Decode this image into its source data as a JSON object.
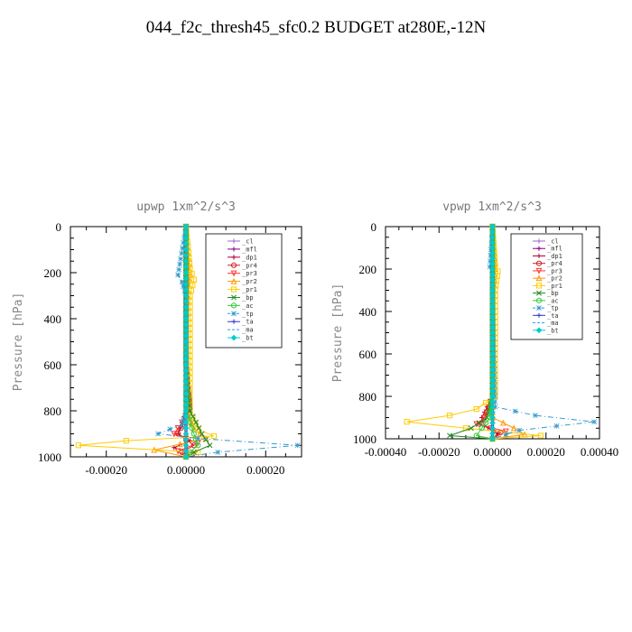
{
  "title": "044_f2c_thresh45_sfc0.2  BUDGET at280E,-12N",
  "chart_data": [
    {
      "type": "line",
      "title": "upwp   1xm^2/s^3",
      "ylabel": "Pressure [hPa]",
      "xlabel": "",
      "xlim": [
        -0.00029,
        0.00029
      ],
      "ylim": [
        1000,
        0
      ],
      "xticks": [
        -0.0002,
        0,
        0.0002
      ],
      "xtick_labels": [
        "-0.00020",
        "0.00000",
        "0.00020"
      ],
      "yticks": [
        0,
        200,
        400,
        600,
        800,
        1000
      ],
      "ytick_labels": [
        "0",
        "200",
        "400",
        "600",
        "800",
        "1000"
      ],
      "legend": "top-right",
      "series": [
        {
          "name": "_cl",
          "color": "#9966cc",
          "marker": "+",
          "x": [
            0,
            0,
            0,
            0,
            0,
            0,
            0
          ],
          "y": [
            0,
            200,
            400,
            600,
            800,
            900,
            1000
          ]
        },
        {
          "name": "_mfl",
          "color": "#880088",
          "marker": "+",
          "x": [
            0,
            0,
            0,
            0,
            0,
            0,
            0
          ],
          "y": [
            0,
            200,
            400,
            600,
            800,
            900,
            1000
          ]
        },
        {
          "name": "_dp1",
          "color": "#aa0033",
          "marker": "+",
          "x": [
            0,
            0,
            0,
            0,
            0,
            -2e-05,
            1e-05,
            -3e-05,
            2e-05,
            0
          ],
          "y": [
            0,
            200,
            400,
            600,
            800,
            900,
            930,
            960,
            985,
            1000
          ]
        },
        {
          "name": "_pr4",
          "color": "#cc2222",
          "marker": "o",
          "x": [
            0,
            0,
            0,
            0,
            1e-05,
            -2e-05,
            2e-05,
            -1e-05,
            0
          ],
          "y": [
            0,
            200,
            400,
            600,
            800,
            900,
            950,
            980,
            1000
          ]
        },
        {
          "name": "_pr3",
          "color": "#ff3333",
          "marker": "v",
          "x": [
            0,
            0,
            0,
            0,
            1e-05,
            -3e-05,
            3e-05,
            -2e-05,
            0
          ],
          "y": [
            0,
            200,
            400,
            600,
            800,
            900,
            940,
            975,
            1000
          ]
        },
        {
          "name": "_pr2",
          "color": "#ff9900",
          "marker": "^",
          "x": [
            0,
            1e-05,
            0,
            0,
            0,
            2e-05,
            5e-05,
            -8e-05,
            0
          ],
          "y": [
            0,
            210,
            400,
            600,
            800,
            880,
            920,
            970,
            1000
          ]
        },
        {
          "name": "_pr1",
          "color": "#ffcc00",
          "marker": "s",
          "x": [
            0,
            1e-05,
            2e-05,
            1e-05,
            1e-05,
            3e-05,
            7e-05,
            -0.00015,
            -0.00027,
            3e-05,
            0
          ],
          "y": [
            0,
            180,
            230,
            300,
            800,
            880,
            910,
            930,
            950,
            980,
            1000
          ]
        },
        {
          "name": "_bp",
          "color": "#228822",
          "marker": "x",
          "x": [
            0,
            0,
            0,
            0,
            1e-05,
            4e-05,
            6e-05,
            2e-05,
            0
          ],
          "y": [
            0,
            200,
            400,
            600,
            800,
            900,
            950,
            980,
            1000
          ]
        },
        {
          "name": "_ac",
          "color": "#33cc33",
          "marker": "o",
          "x": [
            0,
            0,
            0,
            0,
            0,
            2e-05,
            3e-05,
            1e-05,
            0
          ],
          "y": [
            0,
            200,
            400,
            600,
            800,
            900,
            950,
            980,
            1000
          ]
        },
        {
          "name": "_tp",
          "color": "#3399cc",
          "marker": "*",
          "x": [
            0,
            -2e-05,
            -1e-05,
            0,
            0,
            -1e-05,
            -7e-05,
            3e-05,
            0.00028,
            8e-05,
            0
          ],
          "y": [
            0,
            210,
            240,
            300,
            800,
            860,
            900,
            920,
            950,
            980,
            1000
          ]
        },
        {
          "name": "_ta",
          "color": "#3333cc",
          "marker": "+",
          "x": [
            0,
            0,
            0,
            0,
            0,
            0,
            0
          ],
          "y": [
            0,
            200,
            400,
            600,
            800,
            900,
            1000
          ]
        },
        {
          "name": "_ma",
          "color": "#3399ff",
          "marker": "",
          "x": [
            0,
            0,
            0,
            0,
            0,
            0,
            0
          ],
          "y": [
            0,
            200,
            400,
            600,
            800,
            900,
            1000
          ]
        },
        {
          "name": "_bt",
          "color": "#00cccc",
          "marker": "D",
          "x": [
            0,
            0,
            0,
            0,
            0,
            0,
            0
          ],
          "y": [
            0,
            200,
            400,
            600,
            800,
            900,
            1000
          ]
        }
      ]
    },
    {
      "type": "line",
      "title": "vpwp   1xm^2/s^3",
      "ylabel": "Pressure [hPa]",
      "xlabel": "",
      "xlim": [
        -0.0004,
        0.0004
      ],
      "ylim": [
        1000,
        0
      ],
      "xticks": [
        -0.0004,
        -0.0002,
        0,
        0.0002,
        0.0004
      ],
      "xtick_labels": [
        "-0.00040",
        "-0.00020",
        "0.00000",
        "0.00020",
        "0.00040"
      ],
      "yticks": [
        0,
        200,
        400,
        600,
        800,
        1000
      ],
      "ytick_labels": [
        "0",
        "200",
        "400",
        "600",
        "800",
        "1000"
      ],
      "legend": "top-right",
      "series": [
        {
          "name": "_cl",
          "color": "#9966cc",
          "marker": "+",
          "x": [
            0,
            0,
            0,
            0,
            0,
            0,
            0
          ],
          "y": [
            0,
            200,
            400,
            600,
            800,
            900,
            1000
          ]
        },
        {
          "name": "_mfl",
          "color": "#880088",
          "marker": "+",
          "x": [
            0,
            0,
            0,
            0,
            0,
            0,
            0
          ],
          "y": [
            0,
            200,
            400,
            600,
            800,
            900,
            1000
          ]
        },
        {
          "name": "_dp1",
          "color": "#aa0033",
          "marker": "+",
          "x": [
            0,
            0,
            0,
            0,
            0,
            -4e-05,
            -3e-05,
            2e-05,
            0
          ],
          "y": [
            0,
            200,
            400,
            600,
            800,
            900,
            940,
            975,
            1000
          ]
        },
        {
          "name": "_pr4",
          "color": "#cc2222",
          "marker": "o",
          "x": [
            0,
            0,
            0,
            0,
            0,
            -3e-05,
            -5e-05,
            3e-05,
            0
          ],
          "y": [
            0,
            200,
            400,
            600,
            800,
            900,
            930,
            970,
            1000
          ]
        },
        {
          "name": "_pr3",
          "color": "#ff3333",
          "marker": "v",
          "x": [
            0,
            0,
            0,
            0,
            0,
            -3e-05,
            -6e-05,
            5e-05,
            0
          ],
          "y": [
            0,
            200,
            400,
            600,
            800,
            900,
            930,
            965,
            1000
          ]
        },
        {
          "name": "_pr2",
          "color": "#ff9900",
          "marker": "^",
          "x": [
            0,
            1e-05,
            0,
            0,
            0,
            0,
            8e-05,
            0.00012,
            0
          ],
          "y": [
            0,
            200,
            400,
            600,
            800,
            900,
            950,
            980,
            1000
          ]
        },
        {
          "name": "_pr1",
          "color": "#ffcc00",
          "marker": "s",
          "x": [
            0,
            1e-05,
            2e-05,
            1e-05,
            1e-05,
            -6e-05,
            -0.00016,
            -0.00032,
            -0.0001,
            0.00018,
            0
          ],
          "y": [
            0,
            180,
            210,
            300,
            800,
            860,
            890,
            920,
            950,
            985,
            1000
          ]
        },
        {
          "name": "_bp",
          "color": "#228822",
          "marker": "x",
          "x": [
            0,
            0,
            0,
            0,
            0,
            -2e-05,
            -8e-05,
            -0.00016,
            0
          ],
          "y": [
            0,
            200,
            400,
            600,
            800,
            900,
            950,
            985,
            1000
          ]
        },
        {
          "name": "_ac",
          "color": "#33cc33",
          "marker": "o",
          "x": [
            0,
            0,
            0,
            0,
            0,
            -1e-05,
            -4e-05,
            -6e-05,
            0
          ],
          "y": [
            0,
            200,
            400,
            600,
            800,
            900,
            950,
            985,
            1000
          ]
        },
        {
          "name": "_tp",
          "color": "#3399cc",
          "marker": "*",
          "x": [
            0,
            -1e-05,
            0,
            0,
            1e-05,
            0.00016,
            0.00038,
            0.0001,
            0
          ],
          "y": [
            0,
            190,
            220,
            300,
            850,
            890,
            920,
            960,
            1000
          ]
        },
        {
          "name": "_ta",
          "color": "#3333cc",
          "marker": "+",
          "x": [
            0,
            0,
            0,
            0,
            0,
            0,
            0
          ],
          "y": [
            0,
            200,
            400,
            600,
            800,
            900,
            1000
          ]
        },
        {
          "name": "_ma",
          "color": "#3399ff",
          "marker": "",
          "x": [
            0,
            0,
            0,
            0,
            0,
            0,
            0
          ],
          "y": [
            0,
            200,
            400,
            600,
            800,
            900,
            1000
          ]
        },
        {
          "name": "_bt",
          "color": "#00cccc",
          "marker": "D",
          "x": [
            0,
            0,
            0,
            0,
            0,
            0,
            0
          ],
          "y": [
            0,
            200,
            400,
            600,
            800,
            900,
            1000
          ]
        }
      ]
    }
  ]
}
